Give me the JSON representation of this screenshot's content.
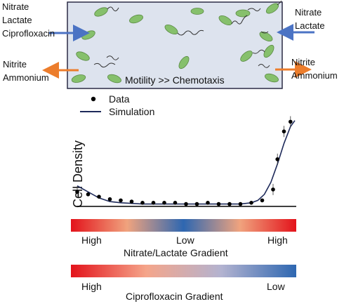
{
  "chamber": {
    "left_inputs": [
      "Nitrate",
      "Lactate",
      "Ciprofloxacin"
    ],
    "right_inputs": [
      "Nitrate",
      "Lactate"
    ],
    "left_outputs": [
      "Nitrite",
      "Ammonium"
    ],
    "right_outputs": [
      "Nitrite",
      "Ammonium"
    ],
    "caption": "Motility >> Chemotaxis",
    "colors": {
      "fill": "#dde3ee",
      "border": "#2b2b45",
      "bacteria": "#86c06c",
      "in_arrow": "#4b73c4",
      "out_arrow": "#ec7d2c"
    }
  },
  "legend": {
    "data_label": "Data",
    "simulation_label": "Simulation"
  },
  "chart_data": {
    "type": "scatter",
    "ylabel": "Cell Density",
    "series": [
      {
        "name": "Data",
        "kind": "points",
        "x": [
          0.0,
          0.05,
          0.1,
          0.15,
          0.2,
          0.25,
          0.3,
          0.35,
          0.4,
          0.45,
          0.5,
          0.55,
          0.6,
          0.65,
          0.7,
          0.75,
          0.8,
          0.85,
          0.9,
          0.92,
          0.95,
          0.98
        ],
        "y": [
          0.12,
          0.1,
          0.08,
          0.06,
          0.05,
          0.04,
          0.03,
          0.03,
          0.03,
          0.03,
          0.02,
          0.02,
          0.03,
          0.02,
          0.02,
          0.02,
          0.03,
          0.05,
          0.14,
          0.39,
          0.62,
          0.7
        ]
      },
      {
        "name": "Simulation",
        "kind": "line",
        "x": [
          0.0,
          0.05,
          0.1,
          0.15,
          0.2,
          0.3,
          0.4,
          0.5,
          0.6,
          0.7,
          0.75,
          0.8,
          0.83,
          0.86,
          0.89,
          0.92,
          0.95,
          0.98,
          1.0
        ],
        "y": [
          0.17,
          0.12,
          0.07,
          0.04,
          0.03,
          0.02,
          0.02,
          0.02,
          0.02,
          0.02,
          0.02,
          0.03,
          0.05,
          0.1,
          0.2,
          0.35,
          0.52,
          0.66,
          0.71
        ]
      }
    ],
    "colors": {
      "data": "#000000",
      "simulation": "#1e2a5a",
      "baseline": "#000000"
    }
  },
  "gradients": [
    {
      "title": "Nitrate/Lactate Gradient",
      "left": "High",
      "center": "Low",
      "right": "High",
      "stops": [
        "#e3131b",
        "#f0a37e",
        "#2e67b1",
        "#f0a37e",
        "#e3131b"
      ]
    },
    {
      "title": "Ciprofloxacin Gradient",
      "left": "High",
      "right": "Low",
      "stops": [
        "#e3131b",
        "#f5a58a",
        "#b3b3d0",
        "#2e67b1"
      ]
    }
  ]
}
